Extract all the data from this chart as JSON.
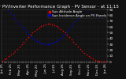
{
  "title": "Solar PV/Inverter Performance Graph - PV Sensor - at 11:15",
  "legend_entries": [
    "Sun Altitude Angle",
    "Sun Incidence Angle on PV Panels"
  ],
  "legend_colors": [
    "#ff0000",
    "#0000ff"
  ],
  "background_color": "#111111",
  "plot_bg": "#111111",
  "grid_color": "#444444",
  "ylim": [
    0,
    90
  ],
  "yticks": [
    0,
    10,
    20,
    30,
    40,
    50,
    60,
    70,
    80,
    90
  ],
  "yticklabels": [
    "0",
    "10",
    "20",
    "30",
    "40",
    "50",
    "60",
    "70",
    "80",
    "90"
  ],
  "altitude_x": [
    0,
    1,
    2,
    3,
    4,
    5,
    6,
    7,
    8,
    9,
    10,
    11,
    12,
    13,
    14,
    15,
    16,
    17,
    18,
    19,
    20,
    21,
    22,
    23,
    24,
    25,
    26,
    27,
    28,
    29,
    30,
    31,
    32,
    33,
    34,
    35,
    36,
    37,
    38,
    39,
    40,
    41,
    42,
    43,
    44,
    45,
    46,
    47,
    48
  ],
  "altitude_y": [
    2,
    4,
    6,
    9,
    12,
    15,
    18,
    22,
    26,
    30,
    34,
    38,
    42,
    46,
    50,
    53,
    56,
    59,
    61,
    63,
    64,
    65,
    65,
    64,
    63,
    61,
    59,
    56,
    53,
    50,
    46,
    42,
    38,
    34,
    30,
    26,
    22,
    18,
    15,
    12,
    9,
    7,
    5,
    3,
    2,
    1,
    0,
    0,
    0
  ],
  "incidence_x": [
    3,
    4,
    5,
    6,
    7,
    8,
    9,
    10,
    11,
    12,
    13,
    14,
    15,
    16,
    17,
    18,
    19,
    20,
    21,
    22,
    23,
    24,
    25,
    26,
    27,
    28,
    29,
    30,
    31,
    32,
    33,
    34,
    35,
    36,
    37,
    38,
    39,
    40,
    41,
    42,
    43,
    44,
    45
  ],
  "incidence_y": [
    88,
    85,
    80,
    75,
    70,
    65,
    60,
    56,
    52,
    48,
    44,
    41,
    38,
    36,
    34,
    32,
    31,
    30,
    30,
    31,
    32,
    34,
    36,
    38,
    41,
    44,
    48,
    52,
    56,
    60,
    65,
    70,
    75,
    80,
    85,
    88,
    87,
    86,
    84,
    82,
    80,
    78,
    76
  ],
  "n_points": 49,
  "xticklabels": [
    "Jan 25",
    "",
    "",
    "",
    "Feb 25",
    "",
    "",
    "",
    "Mar 25",
    "",
    "",
    "",
    "Apr 25",
    "",
    "",
    "",
    "May 25",
    "",
    "",
    "",
    "Jun 25",
    "",
    "",
    "",
    "Jul 25",
    "",
    "",
    "",
    "Aug 25",
    "",
    "",
    "",
    "Sep 25",
    "",
    "",
    "",
    "Oct 25",
    "",
    "",
    "",
    "Nov 25",
    "",
    "",
    "",
    "Dec 25",
    "",
    "",
    "",
    "Jan 26"
  ],
  "title_fontsize": 4.0,
  "tick_fontsize": 3.0,
  "legend_fontsize": 3.0,
  "marker_size": 1.2
}
